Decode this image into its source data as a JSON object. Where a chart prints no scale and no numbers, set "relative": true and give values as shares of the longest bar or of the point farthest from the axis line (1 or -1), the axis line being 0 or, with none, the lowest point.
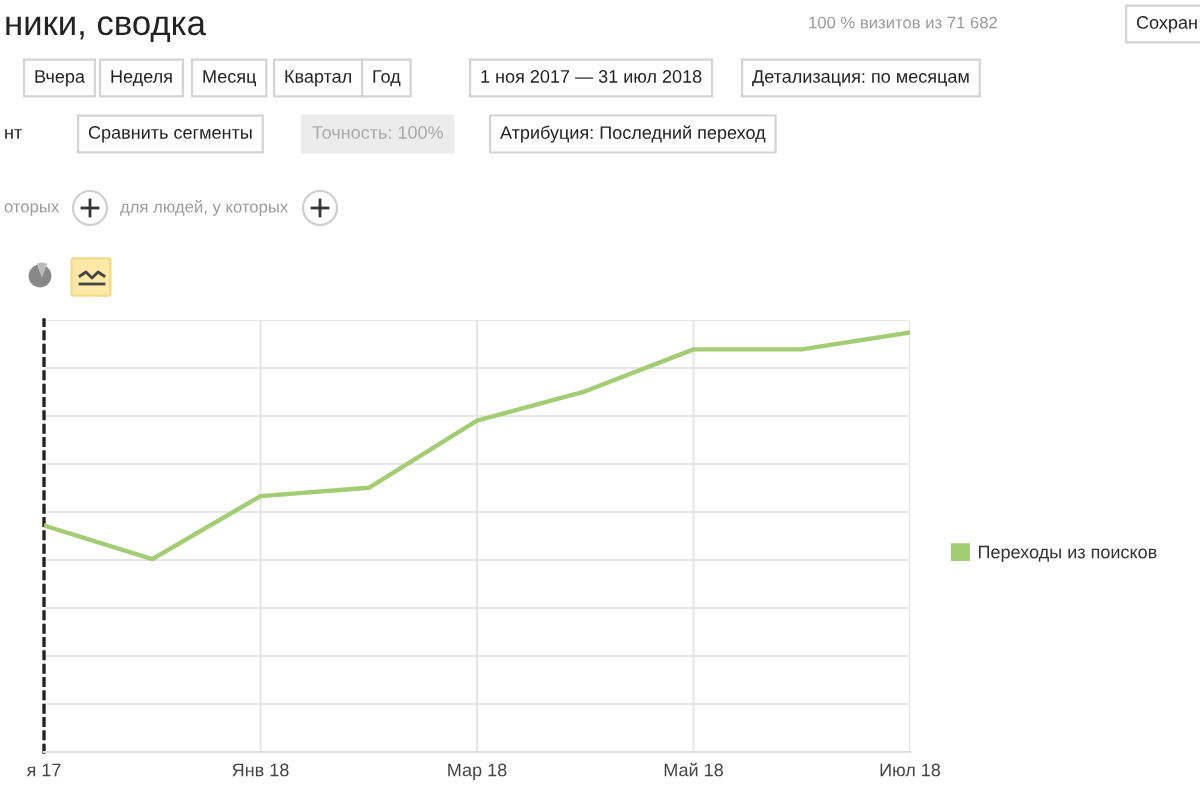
{
  "chart_data": {
    "type": "line",
    "title": "ники, сводка",
    "categories": [
      "я 17",
      null,
      "Янв 18",
      null,
      "Мар 18",
      null,
      "Май 18",
      null,
      "Июл 18"
    ],
    "series": [
      {
        "name": "Переходы из поисков",
        "color": "#a2cd72",
        "values": [
          0.54,
          0.46,
          0.61,
          0.63,
          0.79,
          0.86,
          0.96,
          0.96,
          1.0
        ]
      }
    ],
    "relative": true,
    "grid": true,
    "legend": "right",
    "line_style": "solid",
    "annotations": [
      "100 % визитов из 71 682",
      "Сохран",
      "Вчера",
      "Неделя",
      "Месяц",
      "Квартал",
      "Год",
      "1 ноя 2017 — 31 июл 2018",
      "Детализация: по месяцам",
      "нт",
      "Сравнить сегменты",
      "Точность: 100%",
      "Атрибуция: Последний переход",
      "оторых",
      "для людей, у которых"
    ]
  }
}
